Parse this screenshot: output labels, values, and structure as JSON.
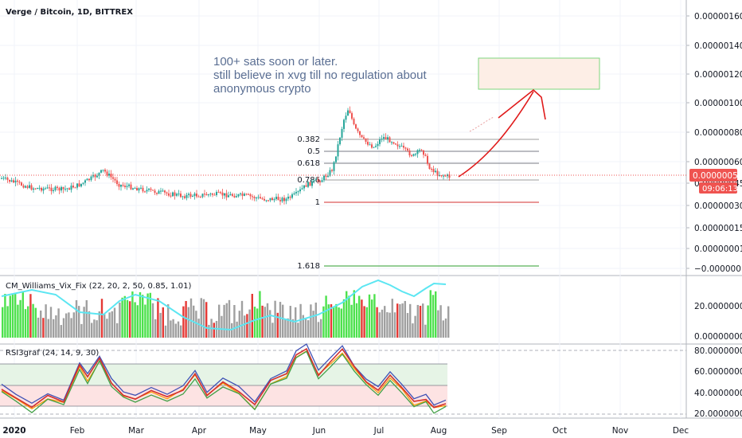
{
  "chart_data": [
    {
      "type": "candlestick",
      "title": "Verge / Bitcoin, 1D, BITTREX",
      "x_ticks": [
        "2020",
        "Feb",
        "Mar",
        "Apr",
        "May",
        "Jun",
        "Jul",
        "Aug",
        "Sep",
        "Oct",
        "Nov",
        "Dec"
      ],
      "y_ticks": [
        "0.00000160",
        "0.00000140",
        "0.00000120",
        "0.00000100",
        "0.00000080",
        "0.00000060",
        "0.00000045",
        "0.00000030",
        "0.00000015",
        "0.00000001",
        "−0.00000013"
      ],
      "last_price_label": "0.00000052",
      "countdown_label": "09:06:13",
      "annotation_lines": [
        "100+ sats soon or later.",
        "still believe in xvg till no regulation about",
        "anonymous crypto"
      ],
      "fib_levels": [
        {
          "label": "0.382"
        },
        {
          "label": "0.5"
        },
        {
          "label": "0.618"
        },
        {
          "label": "0.786"
        },
        {
          "label": "1"
        },
        {
          "label": "1.618"
        }
      ],
      "colors": {
        "up": "#26a69a",
        "down": "#ef5350",
        "arrow": "#e01b1b",
        "target_box": "#fdeee6",
        "target_border": "#7ed67e"
      }
    },
    {
      "type": "bar",
      "title": "CM_Williams_Vix_Fix (22, 20, 2, 50, 0.85, 1.01)",
      "y_ticks": [
        "20.00000000",
        "0.00000000"
      ],
      "colors": {
        "line": "#5ce6f2",
        "highlight": "#4de14d",
        "normal": "#a0a0a0",
        "red": "#e53935"
      }
    },
    {
      "type": "line",
      "title": "RSI3graf (24, 14, 9, 30)",
      "y_ticks": [
        "80.00000000",
        "60.00000000",
        "40.00000000",
        "20.00000000"
      ],
      "colors": {
        "red": "#d32f2f",
        "green": "#43a047",
        "blue": "#3f51b5",
        "orange": "#ff9800",
        "band_green": "#e6f4e6",
        "band_red": "#fde3e3"
      }
    }
  ]
}
